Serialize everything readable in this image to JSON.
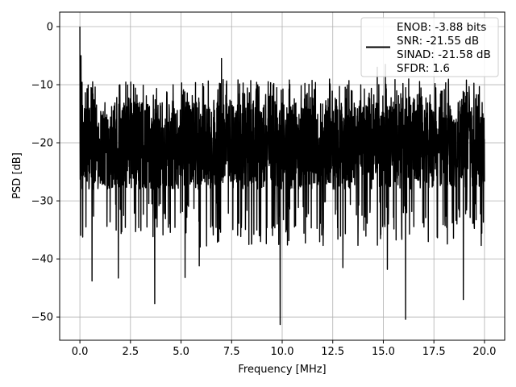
{
  "chart_data": {
    "type": "line",
    "title": "",
    "xlabel": "Frequency [MHz]",
    "ylabel": "PSD [dB]",
    "xlim": [
      -1.0,
      21.0
    ],
    "ylim": [
      -54.0,
      2.5
    ],
    "xticks": [
      0.0,
      2.5,
      5.0,
      7.5,
      10.0,
      12.5,
      15.0,
      17.5,
      20.0
    ],
    "xtick_labels": [
      "0.0",
      "2.5",
      "5.0",
      "7.5",
      "10.0",
      "12.5",
      "15.0",
      "17.5",
      "20.0"
    ],
    "yticks": [
      0,
      -10,
      -20,
      -30,
      -40,
      -50
    ],
    "ytick_labels": [
      "0",
      "−10",
      "−20",
      "−30",
      "−40",
      "−50"
    ],
    "grid": true,
    "legend_placement": "top-right",
    "series": [
      {
        "color": "#000000",
        "x_range": [
          0.0,
          20.0
        ],
        "typical_range_db": [
          -28,
          -13
        ],
        "peak_points": [
          [
            0.0,
            0.0
          ],
          [
            0.05,
            -5.0
          ],
          [
            7.0,
            -5.5
          ],
          [
            14.7,
            -7.0
          ],
          [
            15.1,
            -6.5
          ]
        ],
        "dip_points": [
          [
            0.3,
            -34.5
          ],
          [
            0.6,
            -43.8
          ],
          [
            1.9,
            -43.3
          ],
          [
            3.7,
            -47.7
          ],
          [
            5.2,
            -43.2
          ],
          [
            5.9,
            -41.2
          ],
          [
            9.9,
            -51.3
          ],
          [
            13.0,
            -41.5
          ],
          [
            15.2,
            -41.8
          ],
          [
            16.1,
            -50.4
          ],
          [
            18.95,
            -47.0
          ]
        ]
      }
    ],
    "legend": {
      "lines": [
        "ENOB: -3.88 bits",
        "SNR: -21.55 dB",
        "SINAD: -21.58 dB",
        "SFDR: 1.6"
      ]
    }
  }
}
